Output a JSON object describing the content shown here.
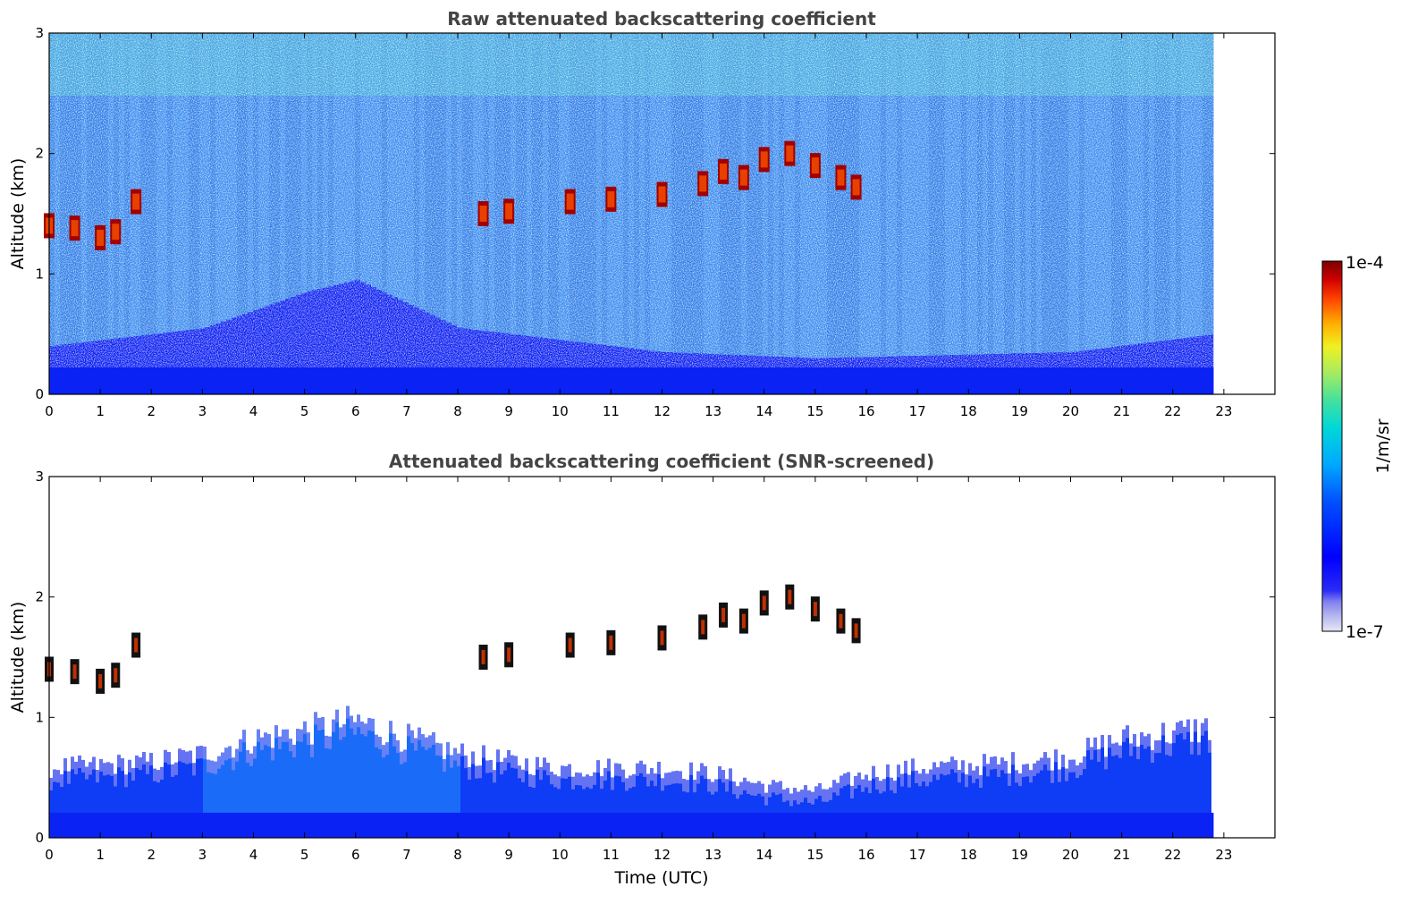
{
  "chart_data": [
    {
      "type": "heatmap",
      "title": "Raw attenuated backscattering coefficient",
      "xlabel": "",
      "ylabel": "Altitude (km)",
      "xlim": [
        0,
        24
      ],
      "ylim": [
        0,
        3
      ],
      "x_ticks": [
        0,
        1,
        2,
        3,
        4,
        5,
        6,
        7,
        8,
        9,
        10,
        11,
        12,
        13,
        14,
        15,
        16,
        17,
        18,
        19,
        20,
        21,
        22,
        23
      ],
      "y_ticks": [
        0,
        1,
        2,
        3
      ],
      "data_extent_hours": [
        0,
        22.8
      ],
      "cloud_layer": [
        {
          "x": 0.0,
          "y": 1.4
        },
        {
          "x": 0.5,
          "y": 1.38
        },
        {
          "x": 1.0,
          "y": 1.3
        },
        {
          "x": 1.3,
          "y": 1.35
        },
        {
          "x": 1.7,
          "y": 1.6
        },
        {
          "x": 8.5,
          "y": 1.5
        },
        {
          "x": 9.0,
          "y": 1.52
        },
        {
          "x": 10.2,
          "y": 1.6
        },
        {
          "x": 11.0,
          "y": 1.62
        },
        {
          "x": 12.0,
          "y": 1.66
        },
        {
          "x": 12.8,
          "y": 1.75
        },
        {
          "x": 13.2,
          "y": 1.85
        },
        {
          "x": 13.6,
          "y": 1.8
        },
        {
          "x": 14.0,
          "y": 1.95
        },
        {
          "x": 14.5,
          "y": 2.0
        },
        {
          "x": 15.0,
          "y": 1.9
        },
        {
          "x": 15.5,
          "y": 1.8
        },
        {
          "x": 15.8,
          "y": 1.72
        }
      ],
      "boundary_layer_top_km": [
        {
          "x": 0,
          "y": 0.4
        },
        {
          "x": 3,
          "y": 0.55
        },
        {
          "x": 5,
          "y": 0.85
        },
        {
          "x": 6,
          "y": 0.95
        },
        {
          "x": 8,
          "y": 0.55
        },
        {
          "x": 12,
          "y": 0.35
        },
        {
          "x": 15,
          "y": 0.3
        },
        {
          "x": 20,
          "y": 0.35
        },
        {
          "x": 22.8,
          "y": 0.5
        }
      ]
    },
    {
      "type": "heatmap",
      "title": "Attenuated backscattering coefficient (SNR-screened)",
      "xlabel": "Time (UTC)",
      "ylabel": "Altitude (km)",
      "xlim": [
        0,
        24
      ],
      "ylim": [
        0,
        3
      ],
      "x_ticks": [
        0,
        1,
        2,
        3,
        4,
        5,
        6,
        7,
        8,
        9,
        10,
        11,
        12,
        13,
        14,
        15,
        16,
        17,
        18,
        19,
        20,
        21,
        22,
        23
      ],
      "y_ticks": [
        0,
        1,
        2,
        3
      ],
      "data_extent_hours": [
        0,
        22.8
      ],
      "boundary_layer_top_km": [
        {
          "x": 0,
          "y": 0.6
        },
        {
          "x": 1,
          "y": 0.62
        },
        {
          "x": 2,
          "y": 0.65
        },
        {
          "x": 3,
          "y": 0.72
        },
        {
          "x": 4,
          "y": 0.85
        },
        {
          "x": 5,
          "y": 0.92
        },
        {
          "x": 6,
          "y": 1.0
        },
        {
          "x": 7,
          "y": 0.85
        },
        {
          "x": 8,
          "y": 0.72
        },
        {
          "x": 9,
          "y": 0.65
        },
        {
          "x": 10,
          "y": 0.6
        },
        {
          "x": 11,
          "y": 0.6
        },
        {
          "x": 12,
          "y": 0.6
        },
        {
          "x": 13,
          "y": 0.55
        },
        {
          "x": 14,
          "y": 0.45
        },
        {
          "x": 15,
          "y": 0.4
        },
        {
          "x": 16,
          "y": 0.55
        },
        {
          "x": 17,
          "y": 0.6
        },
        {
          "x": 18,
          "y": 0.62
        },
        {
          "x": 19,
          "y": 0.65
        },
        {
          "x": 20,
          "y": 0.7
        },
        {
          "x": 21,
          "y": 0.85
        },
        {
          "x": 22,
          "y": 0.9
        },
        {
          "x": 22.8,
          "y": 0.95
        }
      ]
    }
  ],
  "colorbar": {
    "max_label": "1e-4",
    "min_label": "1e-7",
    "unit_label": "1/m/sr",
    "colors": [
      "#e6e6f5",
      "#b8b8f0",
      "#8080f0",
      "#3a3af5",
      "#0000ff",
      "#0028ff",
      "#0060ff",
      "#00a0ff",
      "#00d8e8",
      "#30e0b0",
      "#80e870",
      "#c8f040",
      "#ffe000",
      "#ffa000",
      "#ff5000",
      "#e00000",
      "#800000"
    ]
  }
}
